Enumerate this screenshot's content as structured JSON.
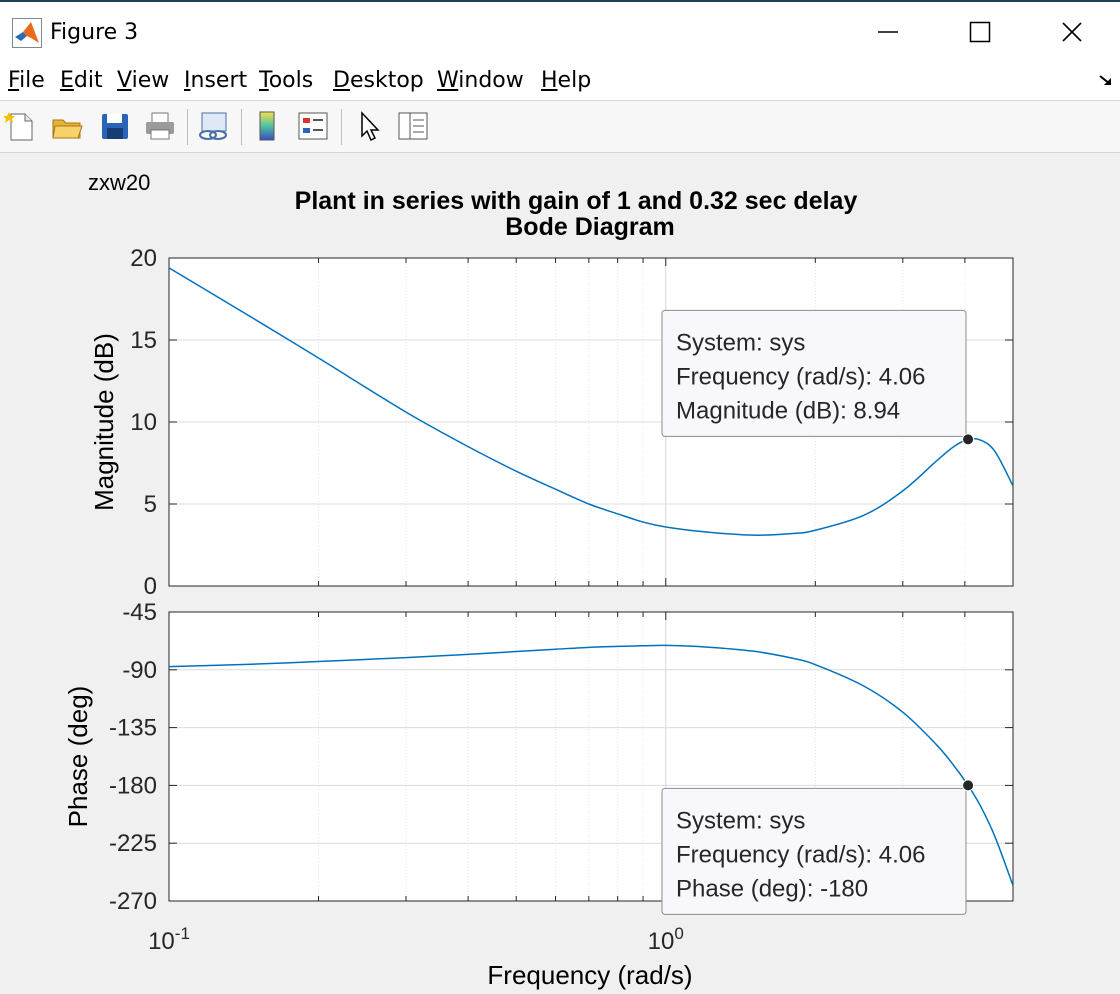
{
  "window": {
    "title": "Figure 3",
    "minimize_icon": "minimize-icon",
    "maximize_icon": "maximize-icon",
    "close_icon": "close-icon"
  },
  "menu": [
    {
      "label": "File",
      "underline": "F"
    },
    {
      "label": "Edit",
      "underline": "E"
    },
    {
      "label": "View",
      "underline": "V"
    },
    {
      "label": "Insert",
      "underline": "I"
    },
    {
      "label": "Tools",
      "underline": "T"
    },
    {
      "label": "Desktop",
      "underline": "D"
    },
    {
      "label": "Window",
      "underline": "W"
    },
    {
      "label": "Help",
      "underline": "H"
    }
  ],
  "toolbar": {
    "icons": [
      "new-figure-icon",
      "open-file-icon",
      "save-icon",
      "print-icon",
      "link-plot-icon",
      "colorbar-icon",
      "legend-icon",
      "pointer-icon",
      "property-inspector-icon"
    ]
  },
  "figure_label": "zxw20",
  "colors": {
    "line": "#0072bd",
    "grid": "#dcdcdc",
    "axes_bg": "#ffffff",
    "figure_bg": "#f0f0f0"
  },
  "chart_data": {
    "type": "line",
    "title": "Plant in series with gain of 1 and 0.32 sec delay",
    "subtitle": "Bode Diagram",
    "xlabel": "Frequency  (rad/s)",
    "xscale": "log",
    "xlim": [
      0.1,
      5.0
    ],
    "xticks": [
      {
        "value": 0.1,
        "base": "10",
        "exp": "-1"
      },
      {
        "value": 1.0,
        "base": "10",
        "exp": "0"
      }
    ],
    "grid": true,
    "panels": [
      {
        "ylabel": "Magnitude (dB)",
        "ylim": [
          0,
          20
        ],
        "yticks": [
          0,
          5,
          10,
          15,
          20
        ],
        "series": {
          "x": [
            0.1,
            0.15,
            0.2,
            0.3,
            0.4,
            0.5,
            0.6,
            0.7,
            0.8,
            0.9,
            1.0,
            1.2,
            1.5,
            1.8,
            2.0,
            2.5,
            3.0,
            3.5,
            3.8,
            4.06,
            4.3,
            4.6,
            5.0
          ],
          "values": [
            19.4,
            16.2,
            13.9,
            10.6,
            8.5,
            7.0,
            5.9,
            5.0,
            4.4,
            3.9,
            3.6,
            3.3,
            3.1,
            3.2,
            3.4,
            4.3,
            5.8,
            7.6,
            8.5,
            8.94,
            8.9,
            8.2,
            6.1
          ]
        },
        "datatip": {
          "x": 4.06,
          "y": 8.94,
          "lines": [
            "System: sys",
            "Frequency (rad/s): 4.06",
            "Magnitude (dB): 8.94"
          ]
        }
      },
      {
        "ylabel": "Phase (deg)",
        "ylim": [
          -270,
          -45
        ],
        "yticks": [
          -45,
          -90,
          -135,
          -180,
          -225,
          -270
        ],
        "series": {
          "x": [
            0.1,
            0.15,
            0.2,
            0.3,
            0.4,
            0.5,
            0.6,
            0.7,
            0.8,
            0.9,
            1.0,
            1.2,
            1.5,
            1.8,
            2.0,
            2.5,
            3.0,
            3.5,
            3.8,
            4.06,
            4.3,
            4.6,
            5.0
          ],
          "values": [
            -87.5,
            -85.5,
            -83.5,
            -80.5,
            -78.0,
            -75.8,
            -74.0,
            -72.5,
            -71.8,
            -71.3,
            -71.0,
            -72.2,
            -75.5,
            -81.0,
            -86.0,
            -102.5,
            -123.0,
            -148.0,
            -164.5,
            -180.0,
            -196.0,
            -220.0,
            -258.0
          ]
        },
        "datatip": {
          "x": 4.06,
          "y": -180,
          "lines": [
            "System: sys",
            "Frequency (rad/s): 4.06",
            "Phase (deg): -180"
          ]
        }
      }
    ]
  }
}
